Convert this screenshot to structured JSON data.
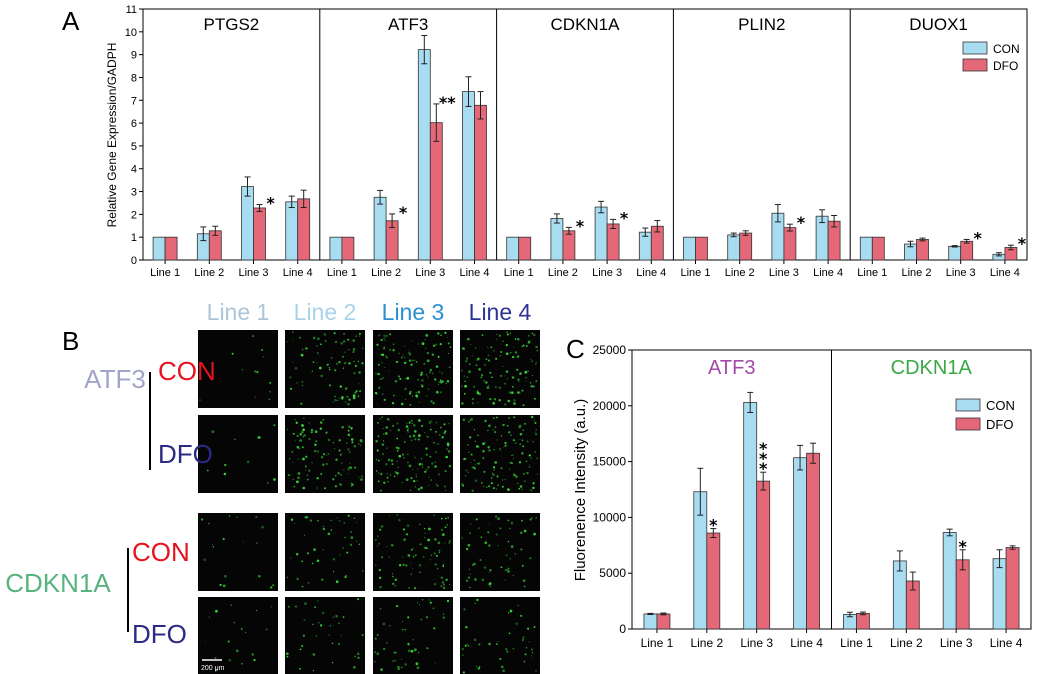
{
  "colors": {
    "con": "#a8dcf0",
    "dfo": "#e46877",
    "con_label": "#e8121e",
    "dfo_label": "#2b2a85",
    "atf3_label": "#a3a4cc",
    "cdkn1a_label": "#58b37d",
    "atf3_title_c": "#a14aa8",
    "cdkn1a_title_c": "#3aa845"
  },
  "panelA": {
    "letter": "A",
    "ylabel": "Relative Gene Expression/GADPH",
    "legend": [
      "CON",
      "DFO"
    ],
    "chart_data": {
      "type": "bar",
      "ylim": [
        0,
        11
      ],
      "yticks": [
        0,
        1,
        2,
        3,
        4,
        5,
        6,
        7,
        8,
        9,
        10,
        11
      ],
      "categories": [
        "Line 1",
        "Line 2",
        "Line 3",
        "Line 4"
      ],
      "groups": [
        {
          "title": "PTGS2",
          "con": [
            1.0,
            1.15,
            3.22,
            2.55
          ],
          "con_err": [
            0,
            0.3,
            0.42,
            0.25
          ],
          "dfo": [
            1.0,
            1.28,
            2.28,
            2.68
          ],
          "dfo_err": [
            0,
            0.2,
            0.15,
            0.38
          ],
          "stars": [
            "",
            "",
            "*",
            ""
          ]
        },
        {
          "title": "ATF3",
          "con": [
            1.0,
            2.75,
            9.22,
            7.38
          ],
          "con_err": [
            0,
            0.3,
            0.62,
            0.65
          ],
          "dfo": [
            1.0,
            1.72,
            6.02,
            6.78
          ],
          "dfo_err": [
            0,
            0.3,
            0.82,
            0.6
          ],
          "stars": [
            "",
            "*",
            "**",
            ""
          ]
        },
        {
          "title": "CDKN1A",
          "con": [
            1.0,
            1.82,
            2.32,
            1.22
          ],
          "con_err": [
            0,
            0.2,
            0.25,
            0.18
          ],
          "dfo": [
            1.0,
            1.28,
            1.58,
            1.48
          ],
          "dfo_err": [
            0,
            0.15,
            0.2,
            0.25
          ],
          "stars": [
            "",
            "*",
            "*",
            ""
          ]
        },
        {
          "title": "PLIN2",
          "con": [
            1.0,
            1.1,
            2.05,
            1.92
          ],
          "con_err": [
            0,
            0.08,
            0.38,
            0.28
          ],
          "dfo": [
            1.0,
            1.18,
            1.42,
            1.7
          ],
          "dfo_err": [
            0,
            0.1,
            0.15,
            0.25
          ],
          "stars": [
            "",
            "",
            "*",
            ""
          ]
        },
        {
          "title": "DUOX1",
          "con": [
            1.0,
            0.7,
            0.6,
            0.25
          ],
          "con_err": [
            0,
            0.12,
            0.03,
            0.07
          ],
          "dfo": [
            1.0,
            0.9,
            0.82,
            0.55
          ],
          "dfo_err": [
            0,
            0.06,
            0.08,
            0.1
          ],
          "stars": [
            "",
            "",
            "*",
            "*"
          ]
        }
      ]
    }
  },
  "panelB": {
    "letter": "B",
    "column_headers": [
      "Line 1",
      "Line 2",
      "Line 3",
      "Line 4"
    ],
    "header_colors": [
      "#aac6d8",
      "#a8d2ea",
      "#2b8fd0",
      "#2d3493"
    ],
    "genes": [
      "ATF3",
      "CDKN1A"
    ],
    "conditions": [
      "CON",
      "DFO"
    ],
    "scalebar_label": "200 μm",
    "green_density": [
      [
        2,
        14,
        20,
        20
      ],
      [
        2,
        18,
        22,
        22
      ],
      [
        3,
        8,
        14,
        10
      ],
      [
        3,
        6,
        8,
        7
      ]
    ]
  },
  "panelC": {
    "letter": "C",
    "ylabel": "Fluorenence Intensity (a.u.)",
    "legend": [
      "CON",
      "DFO"
    ],
    "chart_data": {
      "type": "bar",
      "ylim": [
        0,
        25000
      ],
      "yticks": [
        0,
        5000,
        10000,
        15000,
        20000,
        25000
      ],
      "categories": [
        "Line 1",
        "Line 2",
        "Line 3",
        "Line 4"
      ],
      "groups": [
        {
          "title": "ATF3",
          "con": [
            1350,
            12300,
            20300,
            15350
          ],
          "con_err": [
            50,
            2100,
            900,
            1100
          ],
          "dfo": [
            1350,
            8600,
            13250,
            15750
          ],
          "dfo_err": [
            80,
            400,
            800,
            900
          ],
          "stars": [
            "",
            "*",
            "***",
            ""
          ]
        },
        {
          "title": "CDKN1A",
          "con": [
            1300,
            6100,
            8650,
            6300
          ],
          "con_err": [
            200,
            900,
            300,
            800
          ],
          "dfo": [
            1400,
            4300,
            6200,
            7300
          ],
          "dfo_err": [
            120,
            800,
            900,
            150
          ],
          "stars": [
            "",
            "",
            "*",
            ""
          ]
        }
      ]
    }
  }
}
